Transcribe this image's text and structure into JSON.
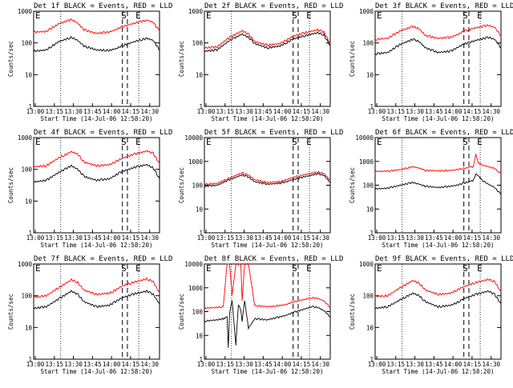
{
  "chart_data": [
    {
      "type": "line",
      "title": "Det 1f BLACK = Events, RED = LLD",
      "xlabel": "Start Time (14-Jul-06 12:58:20)",
      "ylabel": "Counts/sec",
      "ylim": [
        1,
        1000
      ],
      "yscale": "log",
      "yticks": [
        "1",
        "10",
        "100",
        "1000"
      ],
      "xticks": [
        "13:00",
        "13:15",
        "13:30",
        "13:45",
        "14:00",
        "14:15",
        "14:30"
      ],
      "markers": {
        "start": "S",
        "end": "E",
        "left": "E"
      },
      "series": [
        {
          "color": "#000000",
          "x": [
            0,
            10,
            20,
            30,
            35,
            40,
            50,
            60,
            65,
            70,
            80,
            90,
            95,
            100
          ],
          "y": [
            55,
            60,
            110,
            150,
            120,
            80,
            60,
            58,
            65,
            80,
            110,
            140,
            120,
            60
          ]
        },
        {
          "color": "#ff0000",
          "x": [
            0,
            10,
            20,
            30,
            35,
            40,
            50,
            60,
            65,
            70,
            80,
            90,
            95,
            100
          ],
          "y": [
            220,
            230,
            400,
            550,
            420,
            260,
            200,
            220,
            260,
            320,
            420,
            520,
            450,
            230
          ]
        }
      ]
    },
    {
      "type": "line",
      "title": "Det 2f BLACK = Events, RED = LLD",
      "xlabel": "Start Time (14-Jul-06 12:58:20)",
      "ylabel": "Counts/sec",
      "ylim": [
        1,
        1000
      ],
      "yscale": "log",
      "yticks": [
        "1",
        "10",
        "100",
        "1000"
      ],
      "xticks": [
        "13:00",
        "13:15",
        "13:30",
        "13:45",
        "14:00",
        "14:15",
        "14:30"
      ],
      "markers": {
        "start": "S",
        "end": "E",
        "left": "E"
      },
      "series": [
        {
          "color": "#000000",
          "x": [
            0,
            10,
            20,
            30,
            35,
            40,
            50,
            60,
            65,
            70,
            80,
            90,
            95,
            100
          ],
          "y": [
            55,
            60,
            120,
            190,
            150,
            95,
            70,
            80,
            100,
            130,
            170,
            210,
            180,
            80
          ]
        },
        {
          "color": "#ff0000",
          "x": [
            0,
            10,
            20,
            30,
            35,
            40,
            50,
            60,
            65,
            70,
            80,
            90,
            95,
            100
          ],
          "y": [
            70,
            75,
            150,
            240,
            190,
            110,
            85,
            95,
            120,
            160,
            210,
            260,
            220,
            95
          ]
        }
      ]
    },
    {
      "type": "line",
      "title": "Det 3f BLACK = Events, RED = LLD",
      "xlabel": "Start Time (14-Jul-06 12:58:20)",
      "ylabel": "Counts/sec",
      "ylim": [
        1,
        1000
      ],
      "yscale": "log",
      "yticks": [
        "1",
        "10",
        "100",
        "1000"
      ],
      "xticks": [
        "13:00",
        "13:15",
        "13:30",
        "13:45",
        "14:00",
        "14:15",
        "14:30"
      ],
      "markers": {
        "start": "S",
        "end": "E",
        "left": "E"
      },
      "series": [
        {
          "color": "#000000",
          "x": [
            0,
            10,
            20,
            30,
            35,
            40,
            50,
            60,
            65,
            70,
            80,
            90,
            95,
            100
          ],
          "y": [
            45,
            50,
            90,
            130,
            110,
            70,
            50,
            55,
            70,
            90,
            120,
            150,
            130,
            70
          ]
        },
        {
          "color": "#ff0000",
          "x": [
            0,
            10,
            20,
            30,
            35,
            40,
            50,
            60,
            65,
            70,
            80,
            90,
            95,
            100
          ],
          "y": [
            130,
            140,
            240,
            330,
            280,
            170,
            140,
            150,
            180,
            230,
            300,
            360,
            310,
            170
          ]
        }
      ]
    },
    {
      "type": "line",
      "title": "Det 4f BLACK = Events, RED = LLD",
      "xlabel": "Start Time (14-Jul-06 12:58:20)",
      "ylabel": "Counts/sec",
      "ylim": [
        1,
        1000
      ],
      "yscale": "log",
      "yticks": [
        "1",
        "10",
        "100",
        "1000"
      ],
      "xticks": [
        "13:00",
        "13:15",
        "13:30",
        "13:45",
        "14:00",
        "14:15",
        "14:30"
      ],
      "markers": {
        "start": "S",
        "end": "E",
        "left": "E"
      },
      "series": [
        {
          "color": "#000000",
          "x": [
            0,
            10,
            20,
            30,
            35,
            40,
            50,
            60,
            65,
            70,
            80,
            90,
            95,
            100
          ],
          "y": [
            40,
            45,
            80,
            130,
            100,
            60,
            45,
            50,
            65,
            85,
            115,
            140,
            110,
            50
          ]
        },
        {
          "color": "#ff0000",
          "x": [
            0,
            10,
            20,
            30,
            35,
            40,
            50,
            60,
            65,
            70,
            80,
            90,
            95,
            100
          ],
          "y": [
            120,
            130,
            230,
            360,
            300,
            170,
            130,
            140,
            170,
            220,
            300,
            380,
            320,
            150
          ]
        }
      ]
    },
    {
      "type": "line",
      "title": "Det 5f BLACK = Events, RED = LLD",
      "xlabel": "Start Time (14-Jul-06 12:58:20)",
      "ylabel": "Counts/sec",
      "ylim": [
        1,
        10000
      ],
      "yscale": "log",
      "yticks": [
        "1",
        "10",
        "100",
        "1000",
        "10000"
      ],
      "xticks": [
        "13:00",
        "13:15",
        "13:30",
        "13:45",
        "14:00",
        "14:15",
        "14:30"
      ],
      "markers": {
        "start": "S",
        "end": "E",
        "left": "E"
      },
      "series": [
        {
          "color": "#000000",
          "x": [
            0,
            10,
            20,
            30,
            35,
            40,
            50,
            60,
            65,
            70,
            80,
            90,
            95,
            100
          ],
          "y": [
            90,
            100,
            170,
            270,
            220,
            140,
            110,
            120,
            140,
            170,
            230,
            300,
            260,
            130
          ]
        },
        {
          "color": "#ff0000",
          "x": [
            0,
            10,
            20,
            30,
            35,
            40,
            50,
            60,
            65,
            70,
            80,
            90,
            95,
            100
          ],
          "y": [
            110,
            120,
            200,
            330,
            270,
            170,
            130,
            140,
            170,
            210,
            280,
            360,
            310,
            160
          ]
        }
      ]
    },
    {
      "type": "line",
      "title": "Det 6f BLACK = Events, RED = LLD",
      "xlabel": "Start Time (14-Jul-06 12:58:20)",
      "ylabel": "Counts/sec",
      "ylim": [
        1,
        10000
      ],
      "yscale": "log",
      "yticks": [
        "1",
        "10",
        "100",
        "1000",
        "10000"
      ],
      "xticks": [
        "13:00",
        "13:15",
        "13:30",
        "13:45",
        "14:00",
        "14:15",
        "14:30"
      ],
      "markers": {
        "start": "S",
        "end": "E",
        "left": "E"
      },
      "series": [
        {
          "color": "#000000",
          "x": [
            0,
            10,
            20,
            30,
            35,
            40,
            50,
            60,
            65,
            70,
            75,
            78,
            80,
            82,
            85,
            90,
            95,
            100
          ],
          "y": [
            70,
            75,
            100,
            130,
            110,
            90,
            80,
            90,
            100,
            120,
            140,
            160,
            300,
            260,
            160,
            110,
            80,
            40
          ]
        },
        {
          "color": "#ff0000",
          "x": [
            0,
            10,
            20,
            30,
            35,
            40,
            50,
            60,
            65,
            70,
            75,
            78,
            80,
            82,
            85,
            90,
            95,
            100
          ],
          "y": [
            380,
            390,
            450,
            600,
            520,
            420,
            400,
            420,
            450,
            500,
            560,
            600,
            2000,
            900,
            700,
            600,
            500,
            300
          ]
        }
      ]
    },
    {
      "type": "line",
      "title": "Det 7f BLACK = Events, RED = LLD",
      "xlabel": "Start Time (14-Jul-06 12:58:20)",
      "ylabel": "Counts/sec",
      "ylim": [
        1,
        1000
      ],
      "yscale": "log",
      "yticks": [
        "1",
        "10",
        "100",
        "1000"
      ],
      "xticks": [
        "13:00",
        "13:15",
        "13:30",
        "13:45",
        "14:00",
        "14:15",
        "14:30"
      ],
      "markers": {
        "start": "S",
        "end": "E",
        "left": "E"
      },
      "series": [
        {
          "color": "#000000",
          "x": [
            0,
            10,
            20,
            30,
            35,
            40,
            50,
            60,
            65,
            70,
            80,
            90,
            95,
            100
          ],
          "y": [
            40,
            45,
            80,
            140,
            110,
            65,
            45,
            50,
            65,
            85,
            115,
            140,
            110,
            55
          ]
        },
        {
          "color": "#ff0000",
          "x": [
            0,
            10,
            20,
            30,
            35,
            40,
            50,
            60,
            65,
            70,
            80,
            90,
            95,
            100
          ],
          "y": [
            90,
            100,
            180,
            320,
            260,
            150,
            110,
            120,
            150,
            200,
            270,
            340,
            280,
            120
          ]
        }
      ]
    },
    {
      "type": "line",
      "title": "Det 8f BLACK = Events, RED = LLD",
      "xlabel": "Start Time (14-Jul-06 12:58:20)",
      "ylabel": "Counts/sec",
      "ylim": [
        1,
        10000
      ],
      "yscale": "log",
      "yticks": [
        "1",
        "10",
        "100",
        "1000",
        "10000"
      ],
      "xticks": [
        "13:00",
        "13:15",
        "13:30",
        "13:45",
        "14:00",
        "14:15",
        "14:30"
      ],
      "markers": {
        "start": "S",
        "end": "E",
        "left": "E"
      },
      "series": [
        {
          "color": "#000000",
          "x": [
            0,
            10,
            15,
            18,
            19,
            20,
            22,
            25,
            27,
            29,
            30,
            32,
            35,
            40,
            50,
            60,
            65,
            70,
            80,
            85,
            90,
            95,
            100
          ],
          "y": [
            40,
            45,
            50,
            60,
            3,
            80,
            300,
            4,
            200,
            120,
            40,
            300,
            20,
            50,
            45,
            60,
            70,
            90,
            130,
            160,
            150,
            110,
            60
          ]
        },
        {
          "color": "#ff0000",
          "x": [
            0,
            10,
            15,
            18,
            19,
            20,
            22,
            25,
            27,
            29,
            30,
            32,
            35,
            40,
            50,
            60,
            65,
            70,
            80,
            85,
            90,
            95,
            100
          ],
          "y": [
            140,
            150,
            160,
            10000,
            10000,
            10000,
            500,
            10000,
            10000,
            10000,
            300,
            10000,
            10000,
            180,
            160,
            180,
            200,
            250,
            330,
            380,
            360,
            280,
            150
          ]
        }
      ]
    },
    {
      "type": "line",
      "title": "Det 9f BLACK = Events, RED = LLD",
      "xlabel": "Start Time (14-Jul-06 12:58:20)",
      "ylabel": "Counts/sec",
      "ylim": [
        1,
        1000
      ],
      "yscale": "log",
      "yticks": [
        "1",
        "10",
        "100",
        "1000"
      ],
      "xticks": [
        "13:00",
        "13:15",
        "13:30",
        "13:45",
        "14:00",
        "14:15",
        "14:30"
      ],
      "markers": {
        "start": "S",
        "end": "E",
        "left": "E"
      },
      "series": [
        {
          "color": "#000000",
          "x": [
            0,
            10,
            20,
            30,
            35,
            40,
            50,
            60,
            65,
            70,
            80,
            90,
            95,
            100
          ],
          "y": [
            40,
            45,
            75,
            120,
            100,
            65,
            45,
            50,
            60,
            80,
            110,
            140,
            110,
            55
          ]
        },
        {
          "color": "#ff0000",
          "x": [
            0,
            10,
            20,
            30,
            35,
            40,
            50,
            60,
            65,
            70,
            80,
            90,
            95,
            100
          ],
          "y": [
            95,
            100,
            180,
            300,
            250,
            150,
            110,
            120,
            150,
            190,
            260,
            330,
            280,
            130
          ]
        }
      ]
    }
  ]
}
